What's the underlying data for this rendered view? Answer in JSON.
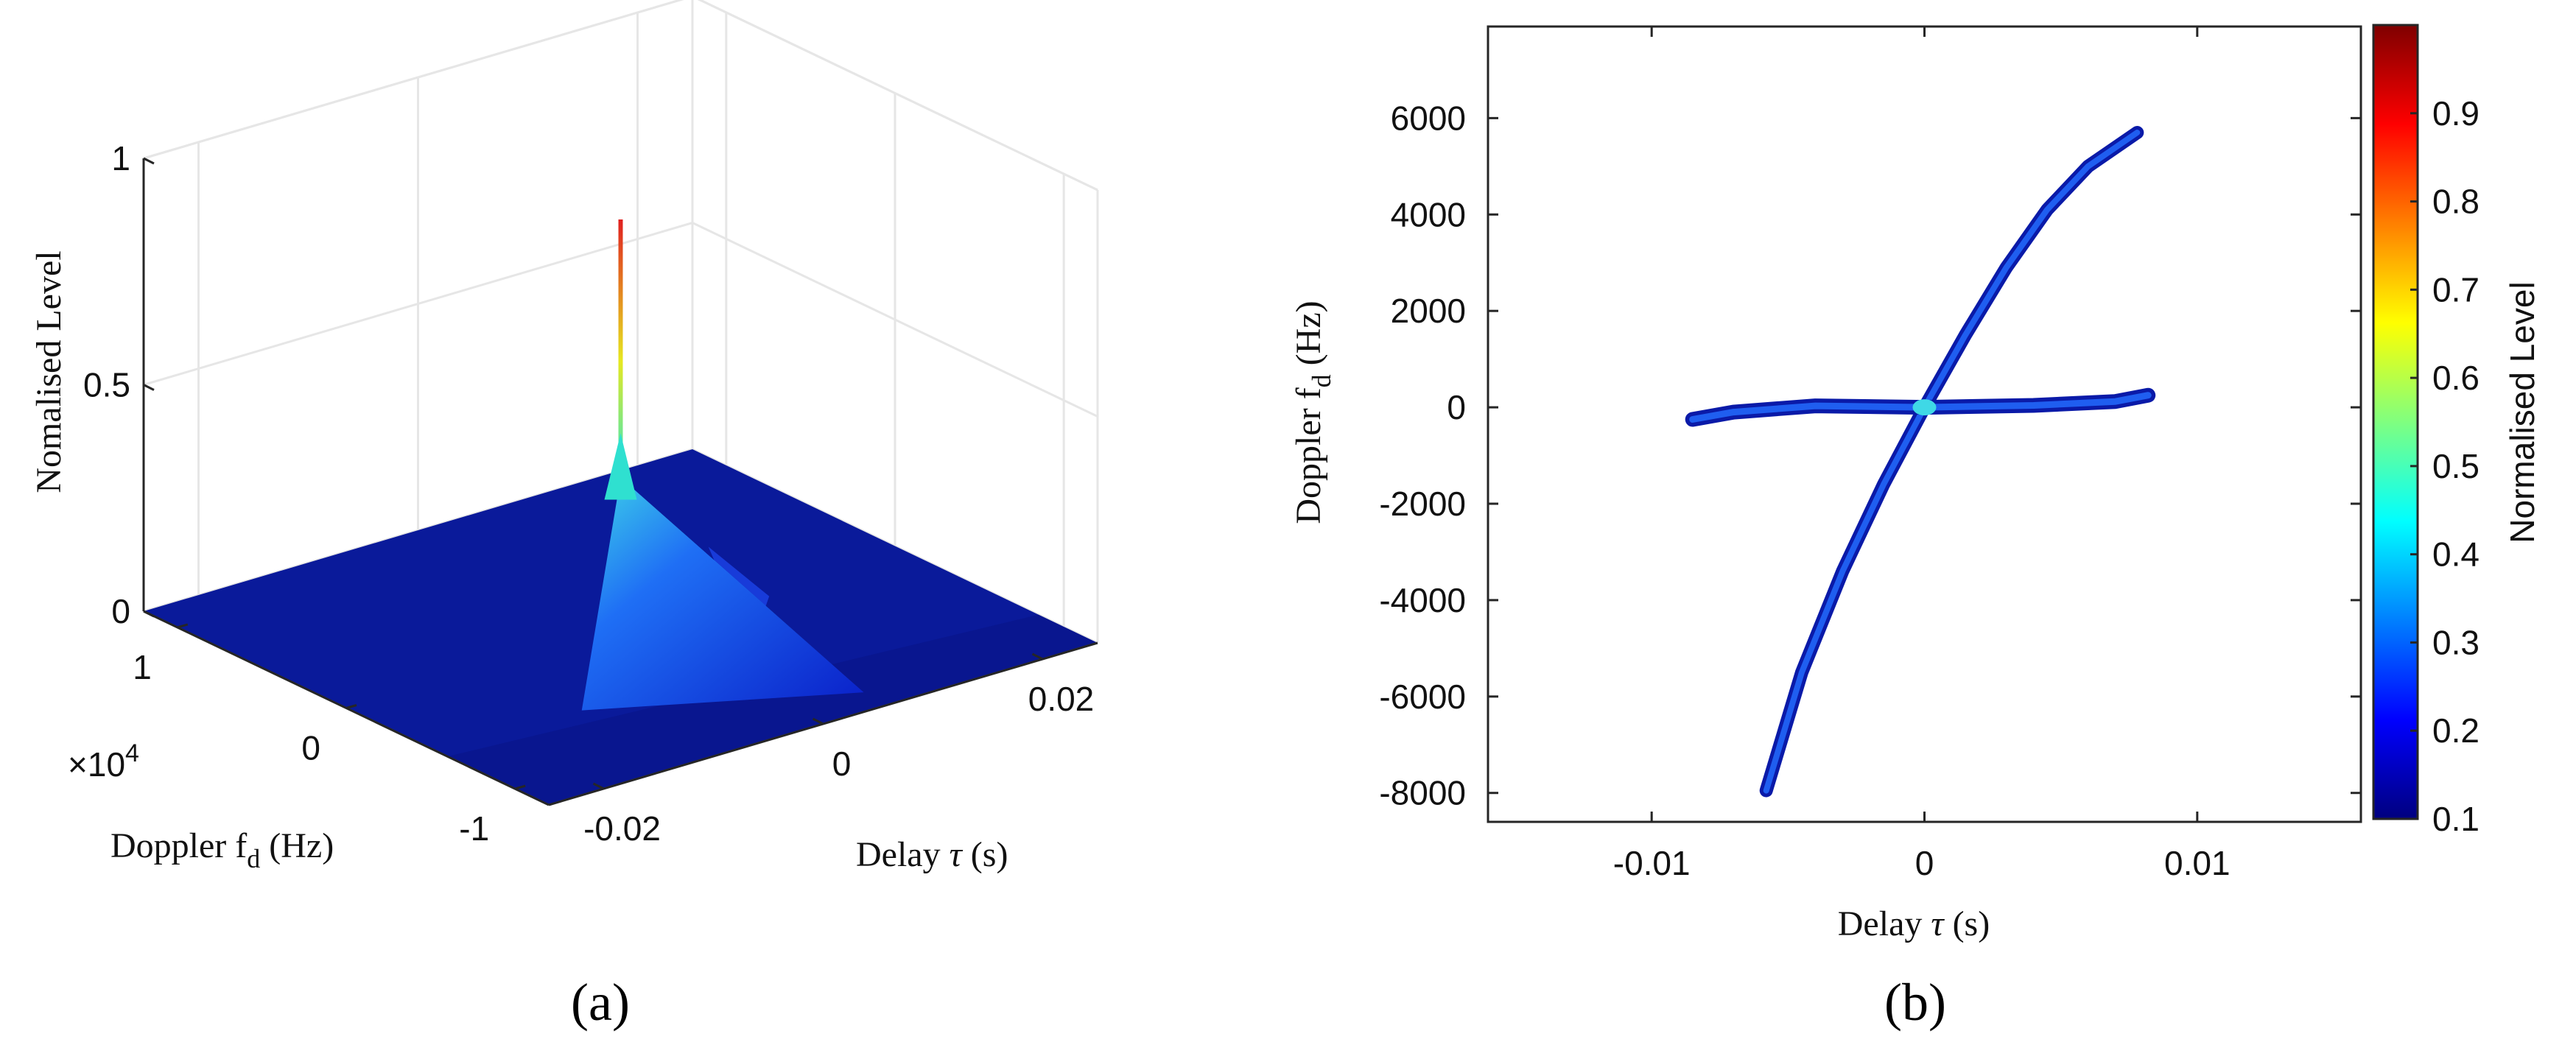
{
  "chart_data": [
    {
      "panel": "(a)",
      "type": "surface",
      "zlabel": "Nomalised Level",
      "ylabel_prefix": "Doppler f",
      "ylabel_sub": "d",
      "ylabel_suffix": " (Hz)",
      "xlabel_prefix": "Delay ",
      "xlabel_symbol": "τ",
      "xlabel_suffix": " (s)",
      "y_exponent_prefix": "×10",
      "y_exponent_power": "4",
      "xlim": [
        -0.025,
        0.025
      ],
      "ylim": [
        -1.2,
        1.2
      ],
      "zlim": [
        0,
        1
      ],
      "x_ticks": [
        {
          "value": -0.02,
          "label": "-0.02"
        },
        {
          "value": 0,
          "label": "0"
        },
        {
          "value": 0.02,
          "label": "0.02"
        }
      ],
      "y_ticks": [
        {
          "value": -1,
          "label": "-1"
        },
        {
          "value": 0,
          "label": "0"
        },
        {
          "value": 1,
          "label": "1"
        }
      ],
      "z_ticks": [
        {
          "value": 0,
          "label": "0"
        },
        {
          "value": 0.5,
          "label": "0.5"
        },
        {
          "value": 1,
          "label": "1"
        }
      ],
      "peak": {
        "delay": 0,
        "doppler": 0,
        "level": 0.9
      },
      "side_peak": {
        "delay": 0.008,
        "doppler": 0,
        "level": 0.12
      },
      "colormap": "jet",
      "grid": true
    },
    {
      "panel": "(b)",
      "type": "heatmap",
      "xlabel_prefix": "Delay ",
      "xlabel_symbol": "τ",
      "xlabel_suffix": " (s)",
      "ylabel_prefix": "Doppler f",
      "ylabel_sub": "d",
      "ylabel_suffix": " (Hz)",
      "xlim": [
        -0.016,
        0.016
      ],
      "ylim": [
        -8600,
        7900
      ],
      "x_ticks": [
        {
          "value": -0.01,
          "label": "-0.01"
        },
        {
          "value": 0,
          "label": "0"
        },
        {
          "value": 0.01,
          "label": "0.01"
        }
      ],
      "y_ticks": [
        {
          "value": 6000,
          "label": "6000"
        },
        {
          "value": 4000,
          "label": "4000"
        },
        {
          "value": 2000,
          "label": "2000"
        },
        {
          "value": 0,
          "label": "0"
        },
        {
          "value": -2000,
          "label": "-2000"
        },
        {
          "value": -4000,
          "label": "-4000"
        },
        {
          "value": -6000,
          "label": "-6000"
        },
        {
          "value": -8000,
          "label": "-8000"
        }
      ],
      "ridges": [
        {
          "name_hidden": "chirp",
          "points": [
            [
              -0.0058,
              -7950
            ],
            [
              -0.0045,
              -5500
            ],
            [
              -0.003,
              -3400
            ],
            [
              -0.0015,
              -1600
            ],
            [
              0,
              0
            ],
            [
              0.0015,
              1500
            ],
            [
              0.003,
              2900
            ],
            [
              0.0045,
              4100
            ],
            [
              0.006,
              5000
            ],
            [
              0.0078,
              5700
            ]
          ]
        },
        {
          "name_hidden": "cw",
          "points": [
            [
              -0.0085,
              -250
            ],
            [
              -0.007,
              -100
            ],
            [
              -0.004,
              30
            ],
            [
              0,
              0
            ],
            [
              0.004,
              40
            ],
            [
              0.007,
              120
            ],
            [
              0.0082,
              250
            ]
          ]
        }
      ],
      "colorbar": {
        "label": "Normalised Level",
        "range": [
          0.1,
          1.0
        ],
        "ticks": [
          {
            "value": 0.1,
            "label": "0.1"
          },
          {
            "value": 0.2,
            "label": "0.2"
          },
          {
            "value": 0.3,
            "label": "0.3"
          },
          {
            "value": 0.4,
            "label": "0.4"
          },
          {
            "value": 0.5,
            "label": "0.5"
          },
          {
            "value": 0.6,
            "label": "0.6"
          },
          {
            "value": 0.7,
            "label": "0.7"
          },
          {
            "value": 0.8,
            "label": "0.8"
          },
          {
            "value": 0.9,
            "label": "0.9"
          }
        ],
        "colormap": "jet"
      }
    }
  ]
}
